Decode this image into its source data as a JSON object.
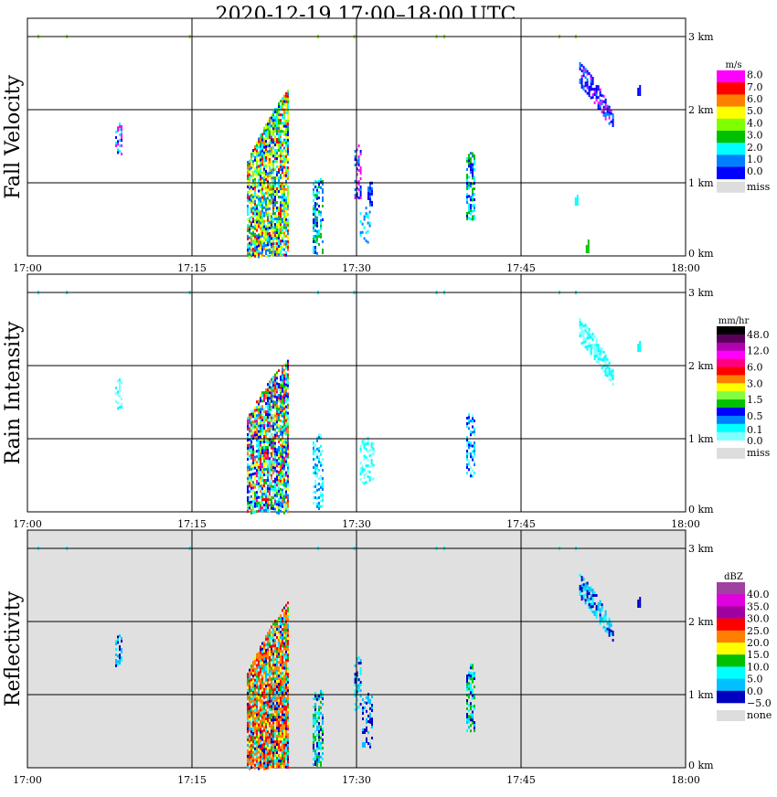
{
  "title": "2020-12-19   17:00–18:00 UTC",
  "chart_data": {
    "type": "heatmap",
    "x_range_minutes": [
      0,
      60
    ],
    "x_ticks": [
      "17:00",
      "17:15",
      "17:30",
      "17:45",
      "18:00"
    ],
    "y_range_km": [
      0,
      3.0
    ],
    "y_ticks": [
      "0 km",
      "1 km",
      "2 km",
      "3 km"
    ],
    "grid": true,
    "panels": [
      {
        "ylabel": "Fall Velocity",
        "unit": "m/s",
        "background": "#ffffff",
        "legend_colors": [
          "#ff00ff",
          "#ff0000",
          "#ff8000",
          "#ffff00",
          "#80ff00",
          "#00c000",
          "#00ffff",
          "#0080ff",
          "#0000ff"
        ],
        "legend_labels": [
          "8.0",
          "7.0",
          "6.0",
          "5.0",
          "4.0",
          "3.0",
          "2.0",
          "1.0",
          "0.0"
        ],
        "missing_label": "miss",
        "echoes": [
          {
            "t": [
              20.0,
              23.8
            ],
            "bot": [
              0.0,
              0.0
            ],
            "top": [
              1.3,
              2.3
            ],
            "colors": [
              3,
              4,
              5,
              6,
              7,
              8,
              2,
              1,
              3,
              4,
              6,
              7
            ],
            "density": 0.85
          },
          {
            "t": [
              8.0,
              8.6
            ],
            "bot": [
              1.4,
              1.4
            ],
            "top": [
              1.75,
              1.75
            ],
            "colors": [
              0,
              8,
              6
            ],
            "density": 0.6
          },
          {
            "t": [
              26.0,
              27.0
            ],
            "bot": [
              0.05,
              0.05
            ],
            "top": [
              1.0,
              1.0
            ],
            "colors": [
              8,
              7,
              6,
              5
            ],
            "density": 0.6
          },
          {
            "t": [
              29.8,
              30.4
            ],
            "bot": [
              0.8,
              0.8
            ],
            "top": [
              1.45,
              1.45
            ],
            "colors": [
              8,
              0,
              7
            ],
            "density": 0.5
          },
          {
            "t": [
              31.0,
              31.5
            ],
            "bot": [
              0.7,
              0.7
            ],
            "top": [
              0.95,
              0.95
            ],
            "colors": [
              8,
              7
            ],
            "density": 0.6
          },
          {
            "t": [
              30.3,
              31.2
            ],
            "bot": [
              0.2,
              0.2
            ],
            "top": [
              0.6,
              0.6
            ],
            "colors": [
              6,
              7
            ],
            "density": 0.4
          },
          {
            "t": [
              40.0,
              40.8
            ],
            "bot": [
              0.5,
              0.5
            ],
            "top": [
              1.35,
              1.35
            ],
            "colors": [
              6,
              7,
              8,
              5
            ],
            "density": 0.6
          },
          {
            "t": [
              50.3,
              53.3
            ],
            "bot": [
              2.35,
              1.75
            ],
            "top": [
              2.65,
              1.95
            ],
            "colors": [
              8,
              0,
              8,
              7
            ],
            "density": 0.7
          },
          {
            "t": [
              55.6,
              55.8
            ],
            "bot": [
              2.2,
              2.2
            ],
            "top": [
              2.3,
              2.3
            ],
            "colors": [
              8
            ],
            "density": 1
          },
          {
            "t": [
              49.9,
              50.1
            ],
            "bot": [
              0.7,
              0.7
            ],
            "top": [
              0.8,
              0.8
            ],
            "colors": [
              6
            ],
            "density": 1
          },
          {
            "t": [
              50.9,
              51.2
            ],
            "bot": [
              0.05,
              0.05
            ],
            "top": [
              0.15,
              0.15
            ],
            "colors": [
              5
            ],
            "density": 1
          }
        ]
      },
      {
        "ylabel": "Rain Intensity",
        "unit": "mm/hr",
        "background": "#ffffff",
        "legend_colors": [
          "#000000",
          "#5a005a",
          "#b000b0",
          "#ff00ff",
          "#ff0080",
          "#ff0000",
          "#ff8000",
          "#ffff00",
          "#80ff40",
          "#00c000",
          "#0000ff",
          "#0080ff",
          "#00ffff",
          "#80ffff"
        ],
        "legend_labels": [
          "48.0",
          "12.0",
          "6.0",
          "3.0",
          "1.5",
          "0.5",
          "0.1",
          "0.0"
        ],
        "missing_label": "miss",
        "echoes": [
          {
            "t": [
              20.0,
              23.8
            ],
            "bot": [
              0.0,
              0.0
            ],
            "top": [
              1.3,
              2.1
            ],
            "colors": [
              10,
              11,
              12,
              5,
              6,
              7,
              8,
              9,
              4,
              10,
              11,
              12,
              13
            ],
            "density": 0.85
          },
          {
            "t": [
              8.0,
              8.6
            ],
            "bot": [
              1.4,
              1.4
            ],
            "top": [
              1.75,
              1.75
            ],
            "colors": [
              12,
              13
            ],
            "density": 0.5
          },
          {
            "t": [
              26.0,
              27.0
            ],
            "bot": [
              0.05,
              0.05
            ],
            "top": [
              1.0,
              1.0
            ],
            "colors": [
              12,
              13,
              11
            ],
            "density": 0.55
          },
          {
            "t": [
              30.3,
              31.5
            ],
            "bot": [
              0.4,
              0.4
            ],
            "top": [
              0.95,
              0.95
            ],
            "colors": [
              12,
              13
            ],
            "density": 0.4
          },
          {
            "t": [
              40.0,
              40.8
            ],
            "bot": [
              0.5,
              0.5
            ],
            "top": [
              1.3,
              1.3
            ],
            "colors": [
              12,
              10,
              11,
              13
            ],
            "density": 0.6
          },
          {
            "t": [
              50.3,
              53.3
            ],
            "bot": [
              2.35,
              1.75
            ],
            "top": [
              2.65,
              1.95
            ],
            "colors": [
              12,
              13
            ],
            "density": 0.7
          },
          {
            "t": [
              55.6,
              55.8
            ],
            "bot": [
              2.2,
              2.2
            ],
            "top": [
              2.3,
              2.3
            ],
            "colors": [
              12
            ],
            "density": 1
          }
        ]
      },
      {
        "ylabel": "Reflectivity",
        "unit": "dBZ",
        "background": "#e0e0e0",
        "legend_colors": [
          "#a040a0",
          "#e000e0",
          "#a000a0",
          "#ff0000",
          "#ff8000",
          "#ffff00",
          "#00c000",
          "#00ffff",
          "#00c0ff",
          "#0000c0"
        ],
        "legend_labels": [
          "40.0",
          "35.0",
          "30.0",
          "25.0",
          "20.0",
          "15.0",
          "10.0",
          "5.0",
          "0.0",
          "−5.0"
        ],
        "missing_label": "none",
        "echoes": [
          {
            "t": [
              20.0,
              23.8
            ],
            "bot": [
              0.0,
              0.0
            ],
            "top": [
              1.3,
              2.3
            ],
            "colors": [
              3,
              4,
              4,
              5,
              3,
              4,
              6,
              7,
              8,
              9
            ],
            "density": 0.9
          },
          {
            "t": [
              8.0,
              8.6
            ],
            "bot": [
              1.4,
              1.4
            ],
            "top": [
              1.75,
              1.75
            ],
            "colors": [
              8,
              9,
              7
            ],
            "density": 0.6
          },
          {
            "t": [
              26.0,
              27.0
            ],
            "bot": [
              0.05,
              0.05
            ],
            "top": [
              1.0,
              1.0
            ],
            "colors": [
              7,
              8,
              9,
              6
            ],
            "density": 0.6
          },
          {
            "t": [
              29.8,
              30.4
            ],
            "bot": [
              0.8,
              0.8
            ],
            "top": [
              1.45,
              1.45
            ],
            "colors": [
              9,
              8,
              7
            ],
            "density": 0.5
          },
          {
            "t": [
              30.5,
              31.5
            ],
            "bot": [
              0.3,
              0.3
            ],
            "top": [
              0.95,
              0.95
            ],
            "colors": [
              9,
              8
            ],
            "density": 0.5
          },
          {
            "t": [
              40.0,
              40.8
            ],
            "bot": [
              0.5,
              0.5
            ],
            "top": [
              1.35,
              1.35
            ],
            "colors": [
              6,
              7,
              8,
              9
            ],
            "density": 0.65
          },
          {
            "t": [
              50.3,
              53.3
            ],
            "bot": [
              2.35,
              1.75
            ],
            "top": [
              2.65,
              1.95
            ],
            "colors": [
              8,
              7,
              9
            ],
            "density": 0.7
          },
          {
            "t": [
              55.6,
              55.8
            ],
            "bot": [
              2.2,
              2.2
            ],
            "top": [
              2.3,
              2.3
            ],
            "colors": [
              9
            ],
            "density": 1
          }
        ]
      }
    ],
    "top_level_dots_minutes": [
      1.0,
      3.6,
      14.8,
      26.5,
      29.8,
      37.3,
      38.0,
      48.5,
      50.0
    ]
  }
}
